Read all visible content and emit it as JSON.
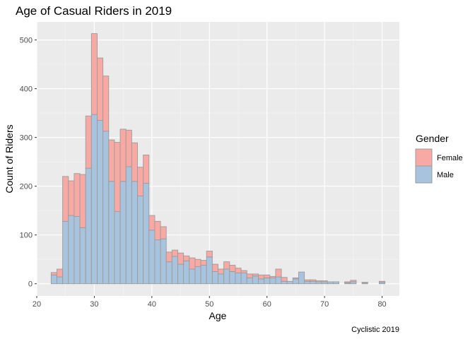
{
  "chart_data": {
    "type": "bar",
    "title": "Age of Casual Riders in 2019",
    "xlabel": "Age",
    "ylabel": "Count of Riders",
    "caption": "Cyclistic 2019",
    "xlim": [
      20,
      83
    ],
    "ylim": [
      -25,
      537
    ],
    "xticks": [
      20,
      30,
      40,
      50,
      60,
      70,
      80
    ],
    "yticks": [
      0,
      100,
      200,
      300,
      400,
      500
    ],
    "grid": true,
    "stacked": true,
    "bin_width": 1,
    "legend": {
      "title": "Gender",
      "position": "right",
      "entries": [
        {
          "label": "Female",
          "color": "#f8a9a4"
        },
        {
          "label": "Male",
          "color": "#a7c3de"
        }
      ]
    },
    "bar_outline": "#9b9b9b",
    "ages": [
      23,
      24,
      25,
      26,
      27,
      28,
      29,
      30,
      31,
      32,
      33,
      34,
      35,
      36,
      37,
      38,
      39,
      40,
      41,
      42,
      43,
      44,
      45,
      46,
      47,
      48,
      49,
      50,
      51,
      52,
      53,
      54,
      55,
      56,
      57,
      58,
      59,
      60,
      61,
      62,
      63,
      64,
      65,
      66,
      67,
      68,
      69,
      70,
      71,
      72,
      73,
      74,
      75,
      76,
      77,
      78,
      79,
      80
    ],
    "series": [
      {
        "name": "Male",
        "values": [
          18,
          14,
          128,
          140,
          138,
          115,
          237,
          347,
          335,
          313,
          210,
          148,
          210,
          240,
          210,
          180,
          206,
          110,
          90,
          92,
          45,
          56,
          40,
          47,
          30,
          35,
          38,
          55,
          25,
          20,
          30,
          25,
          22,
          22,
          12,
          16,
          10,
          12,
          12,
          14,
          5,
          5,
          10,
          24,
          5,
          5,
          4,
          4,
          4,
          4,
          0,
          2,
          4,
          0,
          2,
          0,
          0,
          3
        ]
      },
      {
        "name": "Female",
        "values": [
          5,
          16,
          92,
          71,
          88,
          109,
          107,
          166,
          128,
          113,
          85,
          142,
          107,
          75,
          79,
          59,
          58,
          30,
          38,
          25,
          20,
          13,
          23,
          10,
          23,
          15,
          10,
          12,
          15,
          10,
          15,
          13,
          10,
          5,
          8,
          4,
          8,
          6,
          3,
          16,
          8,
          0,
          2,
          0,
          3,
          3,
          2,
          2,
          0,
          0,
          0,
          2,
          3,
          0,
          1,
          0,
          0,
          2
        ]
      }
    ]
  }
}
